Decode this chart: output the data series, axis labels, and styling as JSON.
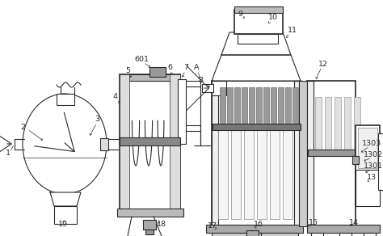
{
  "bg_color": "#ffffff",
  "lc": "#2a2a2a",
  "gray1": "#aaaaaa",
  "gray2": "#cccccc",
  "gray3": "#e8e8e8",
  "dark": "#555555",
  "hatch_gray": "#999999",
  "figsize": [
    4.74,
    2.92
  ],
  "dpi": 100
}
